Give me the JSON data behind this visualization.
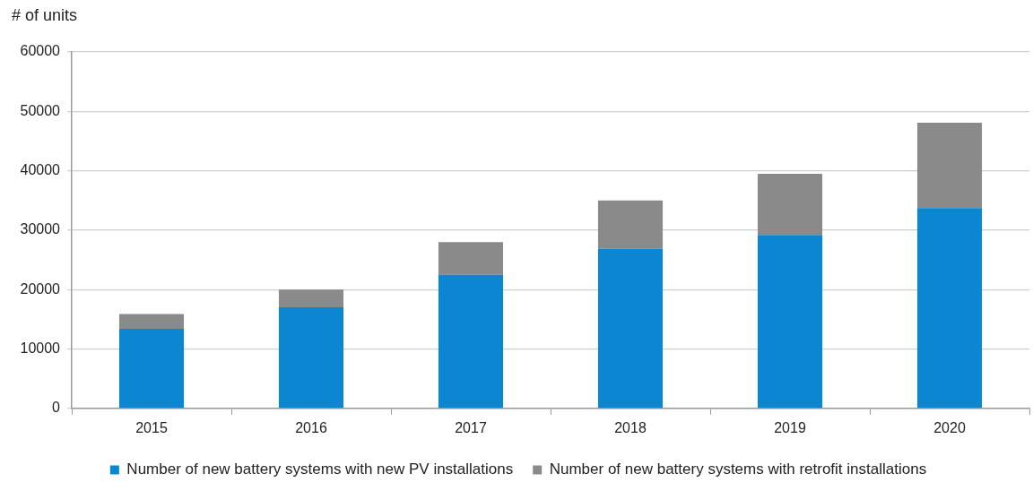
{
  "chart_data": {
    "type": "bar",
    "ylabel": "# of units",
    "categories": [
      "2015",
      "2016",
      "2017",
      "2018",
      "2019",
      "2020"
    ],
    "series": [
      {
        "name": "Number of new battery systems with new PV installations",
        "color": "#0a87d0",
        "values": [
          13400,
          17000,
          22500,
          26900,
          29200,
          33700
        ]
      },
      {
        "name": "Number of new battery systems with retrofit installations",
        "color": "#8a8a8a",
        "values": [
          2500,
          3000,
          5500,
          8100,
          10300,
          14400
        ]
      }
    ],
    "stacked": true,
    "ylim": [
      0,
      60000
    ],
    "yticks": [
      0,
      10000,
      20000,
      30000,
      40000,
      50000,
      60000
    ],
    "grid": "y",
    "legend": "bottom"
  }
}
